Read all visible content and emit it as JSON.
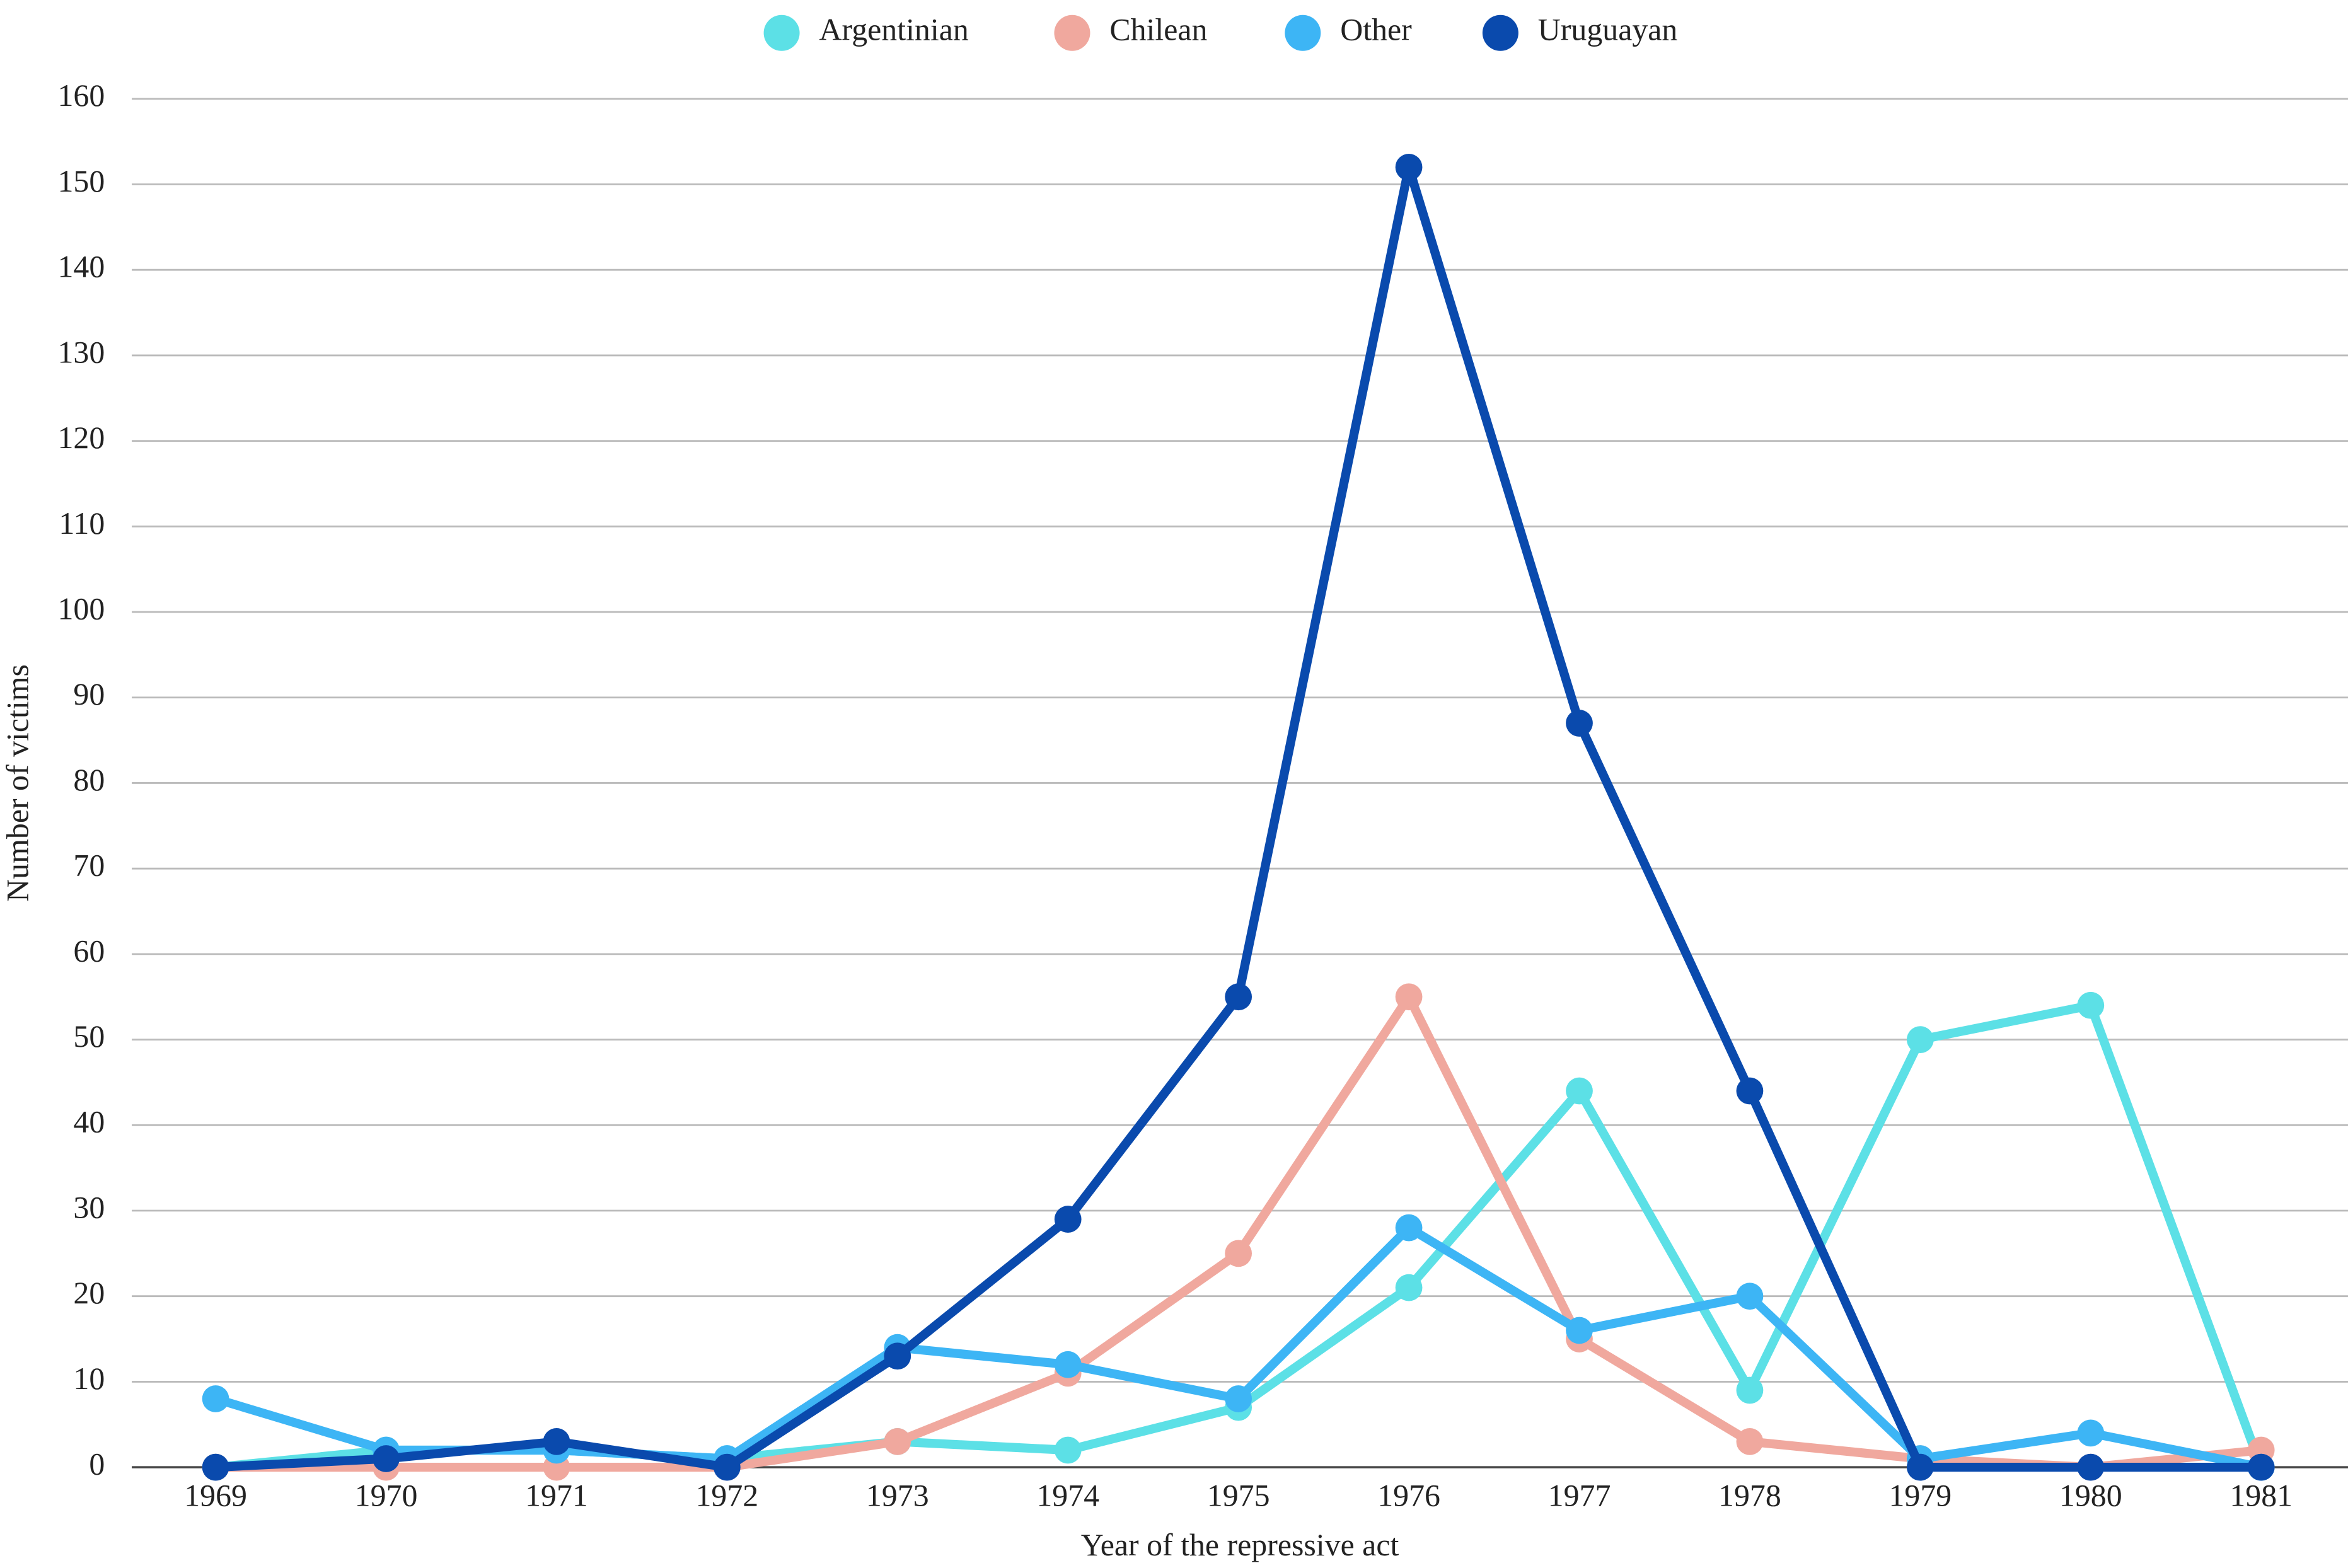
{
  "chart_data": {
    "type": "line",
    "x_label": "Year of the repressive act",
    "y_label": "Number of victims",
    "categories": [
      "1969",
      "1970",
      "1971",
      "1972",
      "1973",
      "1974",
      "1975",
      "1976",
      "1977",
      "1978",
      "1979",
      "1980",
      "1981"
    ],
    "series": [
      {
        "name": "Argentinian",
        "color": "#5ce0e6",
        "values": [
          0,
          2,
          2,
          1,
          3,
          2,
          7,
          21,
          44,
          9,
          50,
          54,
          0
        ]
      },
      {
        "name": "Chilean",
        "color": "#f0a89e",
        "values": [
          0,
          0,
          0,
          0,
          3,
          11,
          25,
          55,
          15,
          3,
          1,
          0,
          2
        ]
      },
      {
        "name": "Other",
        "color": "#3db5f5",
        "values": [
          8,
          2,
          2,
          1,
          14,
          12,
          8,
          28,
          16,
          20,
          1,
          4,
          0
        ]
      },
      {
        "name": "Uruguayan",
        "color": "#0a4aad",
        "values": [
          0,
          1,
          3,
          0,
          13,
          29,
          55,
          152,
          87,
          44,
          0,
          0,
          0
        ]
      }
    ],
    "ylim": [
      0,
      160
    ],
    "yticks": [
      0,
      10,
      20,
      30,
      40,
      50,
      60,
      70,
      80,
      90,
      100,
      110,
      120,
      130,
      140,
      150,
      160
    ],
    "grid": true,
    "legend": "top"
  }
}
